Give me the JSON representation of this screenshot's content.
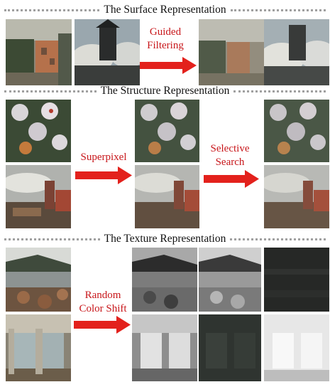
{
  "sections": {
    "surface": {
      "title": "The Surface Representation",
      "step": [
        "Guided",
        "Filtering"
      ]
    },
    "structure": {
      "title": "The Structure Representation",
      "step1": "Superpixel",
      "step2": [
        "Selective",
        "Search"
      ]
    },
    "texture": {
      "title": "The Texture Representation",
      "step": [
        "Random",
        "Color Shift"
      ]
    }
  },
  "colors": {
    "arrow": "#e3211c",
    "label": "#c8171b",
    "dots": "#a0a0a0"
  }
}
